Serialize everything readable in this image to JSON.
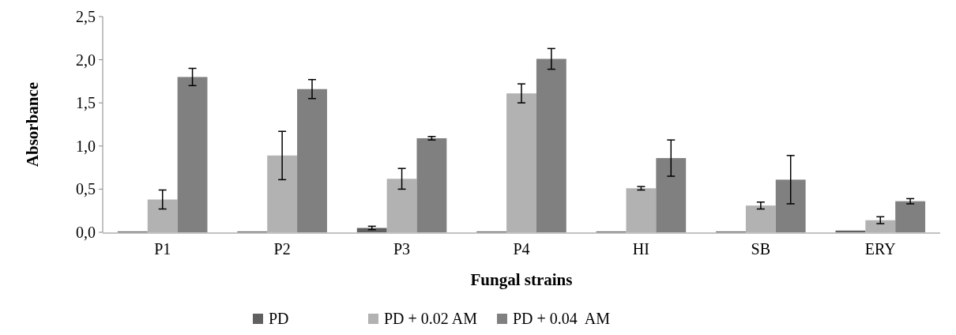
{
  "chart_data": {
    "type": "bar",
    "xlabel": "Fungal strains",
    "ylabel": "Absorbance",
    "categories": [
      "P1",
      "P2",
      "P3",
      "P4",
      "HI",
      "SB",
      "ERY"
    ],
    "series": [
      {
        "name": "PD",
        "color": "#606060",
        "values": [
          0.01,
          0.01,
          0.05,
          0.01,
          0.01,
          0.01,
          0.02
        ],
        "errors": [
          null,
          null,
          0.02,
          null,
          null,
          null,
          null
        ]
      },
      {
        "name": "PD + 0.02 AM",
        "color": "#b2b2b2",
        "values": [
          0.38,
          0.89,
          0.62,
          1.61,
          0.51,
          0.31,
          0.14
        ],
        "errors": [
          0.11,
          0.28,
          0.12,
          0.11,
          0.02,
          0.04,
          0.04
        ]
      },
      {
        "name": "PD + 0.04  AM",
        "color": "#808080",
        "values": [
          1.8,
          1.66,
          1.09,
          2.01,
          0.86,
          0.61,
          0.36
        ],
        "errors": [
          0.1,
          0.11,
          0.02,
          0.12,
          0.21,
          0.28,
          0.03
        ]
      }
    ],
    "ylim": [
      0,
      2.5
    ],
    "yticks": [
      {
        "value": 0,
        "label": "0,0"
      },
      {
        "value": 0.5,
        "label": "0,5"
      },
      {
        "value": 1,
        "label": "1,0"
      },
      {
        "value": 1.5,
        "label": "1,5"
      },
      {
        "value": 2,
        "label": "2,0"
      },
      {
        "value": 2.5,
        "label": "2,5"
      }
    ],
    "legend": "bottom"
  }
}
